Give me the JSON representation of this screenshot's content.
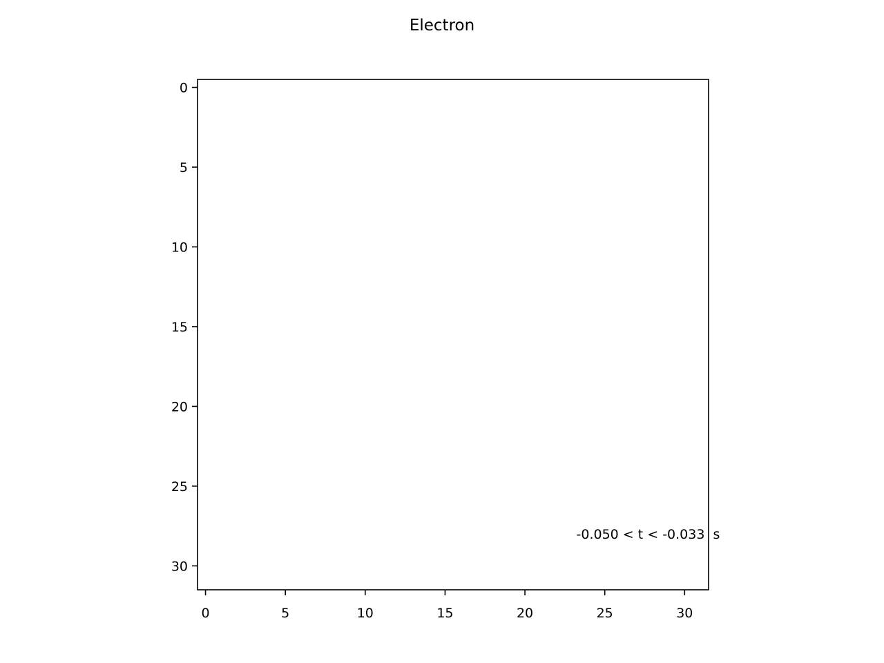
{
  "chart_data": {
    "type": "heatmap",
    "title": "Electron",
    "xlabel": "",
    "ylabel": "",
    "xlim": [
      -0.5,
      31.5
    ],
    "ylim": [
      31.5,
      -0.5
    ],
    "y_inverted": true,
    "x_ticks": [
      0,
      5,
      10,
      15,
      20,
      25,
      30
    ],
    "y_ticks": [
      0,
      5,
      10,
      15,
      20,
      25,
      30
    ],
    "grid": false,
    "background": "#ffffff",
    "values": [],
    "annotation": {
      "text": "-0.050 < t < -0.033  s",
      "x": 31,
      "y": 28,
      "anchor": "right"
    }
  }
}
